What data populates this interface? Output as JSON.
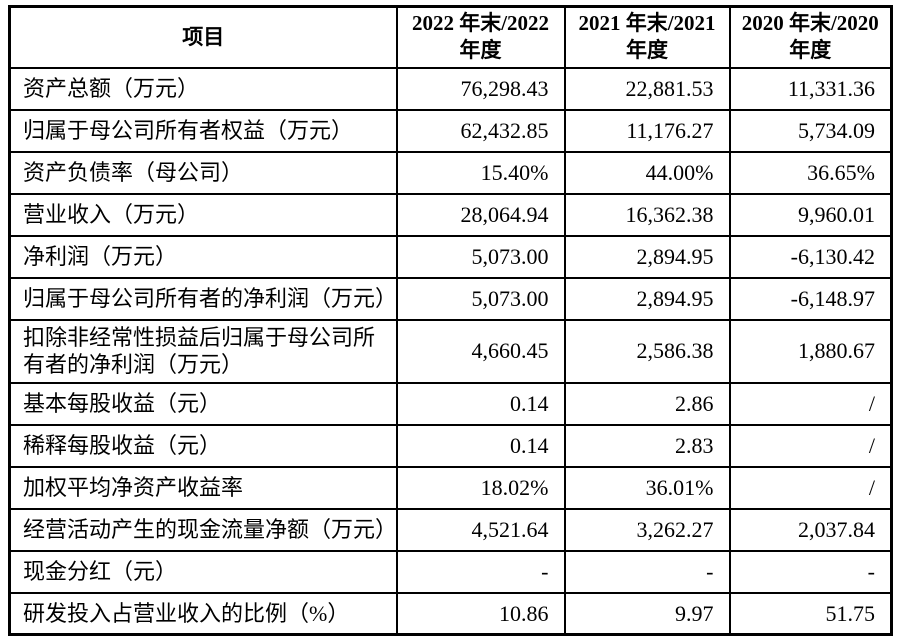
{
  "table": {
    "border_color": "#000000",
    "text_color": "#000000",
    "background_color": "#ffffff",
    "columns": [
      "项目",
      "2022 年末/2022 年度",
      "2021 年末/2021 年度",
      "2020 年末/2020 年度"
    ],
    "rows": [
      {
        "label": "资产总额（万元）",
        "values": [
          "76,298.43",
          "22,881.53",
          "11,331.36"
        ]
      },
      {
        "label": "归属于母公司所有者权益（万元）",
        "values": [
          "62,432.85",
          "11,176.27",
          "5,734.09"
        ]
      },
      {
        "label": "资产负债率（母公司）",
        "values": [
          "15.40%",
          "44.00%",
          "36.65%"
        ]
      },
      {
        "label": "营业收入（万元）",
        "values": [
          "28,064.94",
          "16,362.38",
          "9,960.01"
        ]
      },
      {
        "label": "净利润（万元）",
        "values": [
          "5,073.00",
          "2,894.95",
          "-6,130.42"
        ]
      },
      {
        "label": "归属于母公司所有者的净利润（万元）",
        "values": [
          "5,073.00",
          "2,894.95",
          "-6,148.97"
        ]
      },
      {
        "label": "扣除非经常性损益后归属于母公司所有者的净利润（万元）",
        "values": [
          "4,660.45",
          "2,586.38",
          "1,880.67"
        ]
      },
      {
        "label": "基本每股收益（元）",
        "values": [
          "0.14",
          "2.86",
          "/"
        ]
      },
      {
        "label": "稀释每股收益（元）",
        "values": [
          "0.14",
          "2.83",
          "/"
        ]
      },
      {
        "label": "加权平均净资产收益率",
        "values": [
          "18.02%",
          "36.01%",
          "/"
        ]
      },
      {
        "label": "经营活动产生的现金流量净额（万元）",
        "values": [
          "4,521.64",
          "3,262.27",
          "2,037.84"
        ]
      },
      {
        "label": "现金分红（元）",
        "values": [
          "-",
          "-",
          "-"
        ]
      },
      {
        "label": "研发投入占营业收入的比例（%）",
        "values": [
          "10.86",
          "9.97",
          "51.75"
        ]
      }
    ]
  }
}
